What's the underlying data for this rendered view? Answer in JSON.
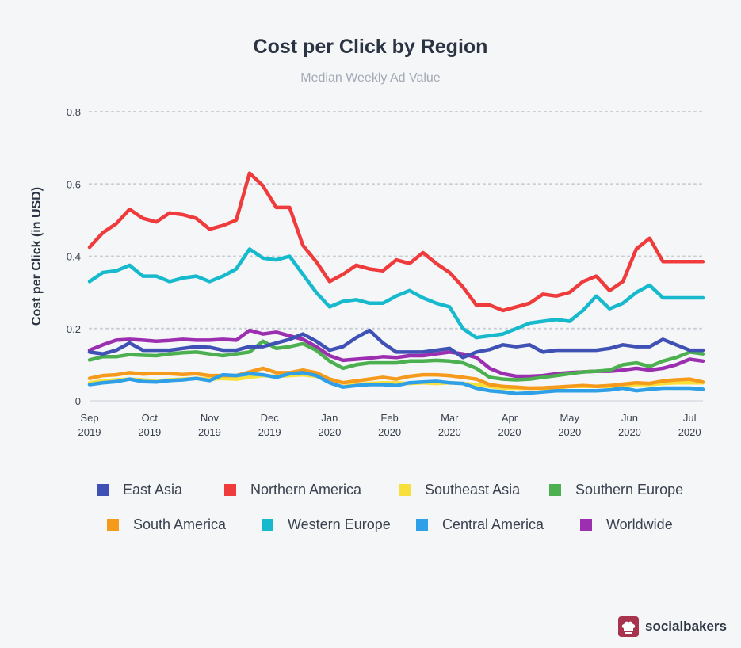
{
  "title": "Cost per Click by Region",
  "subtitle": "Median Weekly Ad Value",
  "brand": {
    "name": "socialbakers",
    "icon": "chef-hat-icon"
  },
  "chart_data": {
    "type": "line",
    "title": "Cost per Click by Region",
    "subtitle": "Median Weekly Ad Value",
    "ylabel": "Cost per Click (in USD)",
    "xlabel": "",
    "ylim": [
      0,
      0.8
    ],
    "yticks": [
      {
        "value": 0,
        "label": "0"
      },
      {
        "value": 0.2,
        "label": "0.2"
      },
      {
        "value": 0.4,
        "label": "0.4"
      },
      {
        "value": 0.6,
        "label": "0.6"
      },
      {
        "value": 0.8,
        "label": "0.8"
      }
    ],
    "xticks": [
      {
        "index": 0,
        "month": "Sep",
        "year": "2019"
      },
      {
        "index": 4.5,
        "month": "Oct",
        "year": "2019"
      },
      {
        "index": 9,
        "month": "Nov",
        "year": "2019"
      },
      {
        "index": 13.5,
        "month": "Dec",
        "year": "2019"
      },
      {
        "index": 18,
        "month": "Jan",
        "year": "2020"
      },
      {
        "index": 22.5,
        "month": "Feb",
        "year": "2020"
      },
      {
        "index": 27,
        "month": "Mar",
        "year": "2020"
      },
      {
        "index": 31.5,
        "month": "Apr",
        "year": "2020"
      },
      {
        "index": 36,
        "month": "May",
        "year": "2020"
      },
      {
        "index": 40.5,
        "month": "Jun",
        "year": "2020"
      },
      {
        "index": 45,
        "month": "Jul",
        "year": "2020"
      }
    ],
    "grid": "horizontal-dotted",
    "legend_position": "bottom",
    "series": [
      {
        "name": "Southeast Asia",
        "color": "#f7e03b",
        "values": [
          0.05,
          0.055,
          0.058,
          0.06,
          0.058,
          0.055,
          0.058,
          0.06,
          0.062,
          0.06,
          0.062,
          0.06,
          0.065,
          0.07,
          0.068,
          0.07,
          0.072,
          0.068,
          0.06,
          0.05,
          0.045,
          0.048,
          0.05,
          0.05,
          0.048,
          0.05,
          0.048,
          0.05,
          0.048,
          0.045,
          0.04,
          0.035,
          0.035,
          0.035,
          0.035,
          0.035,
          0.04,
          0.04,
          0.04,
          0.04,
          0.042,
          0.045,
          0.045,
          0.048,
          0.05,
          0.05,
          0.05
        ]
      },
      {
        "name": "South America",
        "color": "#f59a1b",
        "values": [
          0.062,
          0.07,
          0.072,
          0.078,
          0.074,
          0.076,
          0.075,
          0.073,
          0.075,
          0.07,
          0.07,
          0.07,
          0.08,
          0.09,
          0.078,
          0.078,
          0.085,
          0.078,
          0.06,
          0.05,
          0.055,
          0.06,
          0.065,
          0.06,
          0.068,
          0.072,
          0.072,
          0.07,
          0.065,
          0.06,
          0.045,
          0.04,
          0.038,
          0.035,
          0.036,
          0.038,
          0.04,
          0.042,
          0.04,
          0.042,
          0.046,
          0.05,
          0.048,
          0.055,
          0.058,
          0.06,
          0.052
        ]
      },
      {
        "name": "Central America",
        "color": "#2f9fe8",
        "values": [
          0.045,
          0.05,
          0.053,
          0.06,
          0.053,
          0.052,
          0.056,
          0.058,
          0.062,
          0.056,
          0.072,
          0.07,
          0.075,
          0.072,
          0.065,
          0.075,
          0.078,
          0.07,
          0.05,
          0.038,
          0.042,
          0.045,
          0.045,
          0.042,
          0.05,
          0.052,
          0.054,
          0.05,
          0.048,
          0.035,
          0.028,
          0.025,
          0.02,
          0.022,
          0.025,
          0.028,
          0.028,
          0.028,
          0.028,
          0.03,
          0.035,
          0.028,
          0.032,
          0.035,
          0.035,
          0.035,
          0.032
        ]
      },
      {
        "name": "Worldwide",
        "color": "#9b2fb0",
        "values": [
          0.14,
          0.155,
          0.168,
          0.17,
          0.168,
          0.165,
          0.167,
          0.17,
          0.168,
          0.168,
          0.17,
          0.168,
          0.195,
          0.185,
          0.19,
          0.18,
          0.17,
          0.15,
          0.125,
          0.112,
          0.115,
          0.118,
          0.122,
          0.12,
          0.125,
          0.125,
          0.13,
          0.135,
          0.13,
          0.12,
          0.09,
          0.075,
          0.068,
          0.068,
          0.07,
          0.075,
          0.078,
          0.08,
          0.082,
          0.082,
          0.085,
          0.09,
          0.085,
          0.09,
          0.1,
          0.115,
          0.11
        ]
      },
      {
        "name": "Southern Europe",
        "color": "#4caf50",
        "values": [
          0.113,
          0.122,
          0.122,
          0.128,
          0.126,
          0.125,
          0.13,
          0.133,
          0.135,
          0.13,
          0.125,
          0.13,
          0.135,
          0.165,
          0.145,
          0.15,
          0.158,
          0.14,
          0.11,
          0.09,
          0.1,
          0.105,
          0.105,
          0.105,
          0.11,
          0.11,
          0.112,
          0.11,
          0.105,
          0.09,
          0.065,
          0.06,
          0.058,
          0.06,
          0.065,
          0.07,
          0.075,
          0.08,
          0.082,
          0.085,
          0.1,
          0.105,
          0.095,
          0.11,
          0.12,
          0.135,
          0.13
        ]
      },
      {
        "name": "East Asia",
        "color": "#3f51b5",
        "values": [
          0.135,
          0.13,
          0.14,
          0.16,
          0.14,
          0.14,
          0.14,
          0.145,
          0.15,
          0.148,
          0.14,
          0.14,
          0.15,
          0.15,
          0.16,
          0.17,
          0.185,
          0.165,
          0.14,
          0.15,
          0.175,
          0.195,
          0.16,
          0.135,
          0.135,
          0.135,
          0.14,
          0.145,
          0.12,
          0.135,
          0.142,
          0.155,
          0.15,
          0.155,
          0.135,
          0.14,
          0.14,
          0.14,
          0.14,
          0.145,
          0.155,
          0.15,
          0.15,
          0.17,
          0.155,
          0.14,
          0.14
        ]
      },
      {
        "name": "Western Europe",
        "color": "#17b9cd",
        "values": [
          0.33,
          0.355,
          0.36,
          0.375,
          0.345,
          0.345,
          0.33,
          0.34,
          0.345,
          0.33,
          0.345,
          0.365,
          0.42,
          0.395,
          0.39,
          0.4,
          0.35,
          0.3,
          0.26,
          0.275,
          0.28,
          0.27,
          0.27,
          0.29,
          0.305,
          0.285,
          0.27,
          0.26,
          0.2,
          0.175,
          0.18,
          0.185,
          0.2,
          0.215,
          0.22,
          0.225,
          0.22,
          0.25,
          0.29,
          0.255,
          0.27,
          0.3,
          0.32,
          0.285,
          0.285,
          0.285,
          0.285
        ]
      },
      {
        "name": "Northern America",
        "color": "#ef3b3b",
        "values": [
          0.425,
          0.465,
          0.49,
          0.53,
          0.505,
          0.495,
          0.52,
          0.515,
          0.505,
          0.475,
          0.485,
          0.5,
          0.63,
          0.595,
          0.535,
          0.535,
          0.43,
          0.385,
          0.33,
          0.35,
          0.375,
          0.365,
          0.36,
          0.39,
          0.38,
          0.41,
          0.38,
          0.355,
          0.315,
          0.265,
          0.265,
          0.25,
          0.26,
          0.27,
          0.295,
          0.29,
          0.3,
          0.33,
          0.345,
          0.305,
          0.33,
          0.42,
          0.45,
          0.385,
          0.385,
          0.385,
          0.385
        ]
      }
    ],
    "legend": [
      {
        "name": "East Asia",
        "color": "#3f51b5"
      },
      {
        "name": "Northern America",
        "color": "#ef3b3b"
      },
      {
        "name": "Southeast Asia",
        "color": "#f7e03b"
      },
      {
        "name": "Southern Europe",
        "color": "#4caf50"
      },
      {
        "name": "South America",
        "color": "#f59a1b"
      },
      {
        "name": "Western Europe",
        "color": "#17b9cd"
      },
      {
        "name": "Central America",
        "color": "#2f9fe8"
      },
      {
        "name": "Worldwide",
        "color": "#9b2fb0"
      }
    ]
  }
}
